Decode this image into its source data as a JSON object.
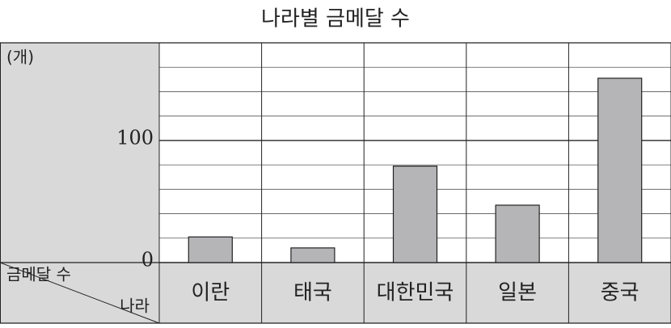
{
  "chart_data": {
    "type": "bar",
    "title": "나라별 금메달 수",
    "y_unit": "(개)",
    "value_axis_label": "금메달 수",
    "category_axis_label": "나라",
    "categories": [
      "이란",
      "태국",
      "대한민국",
      "일본",
      "중국"
    ],
    "values": [
      21,
      12,
      79,
      47,
      151
    ],
    "color": "#b5b5b7",
    "ylim": [
      0,
      180
    ],
    "yticks": [
      0,
      100
    ],
    "minor_yticks": [
      20,
      40,
      60,
      80,
      120,
      140,
      160
    ],
    "grid": true
  }
}
